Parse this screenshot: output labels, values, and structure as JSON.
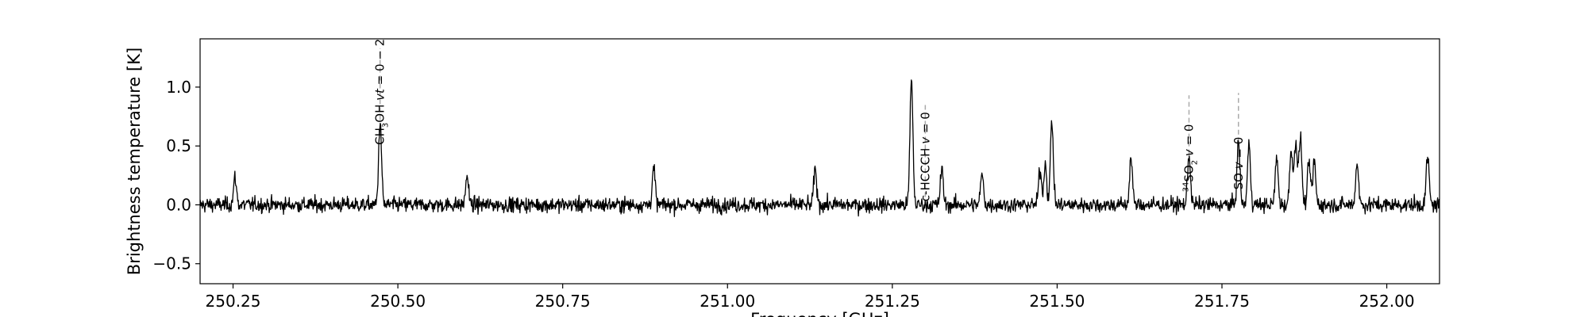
{
  "chart_data": {
    "type": "line",
    "title": "",
    "xlabel": "Frequency [GHz]",
    "ylabel": "Brightness temperature [K]",
    "xlim": [
      250.2,
      252.08
    ],
    "ylim": [
      -0.67,
      1.41
    ],
    "xticks": [
      250.25,
      250.5,
      250.75,
      251.0,
      251.25,
      251.5,
      251.75,
      252.0
    ],
    "xtick_labels": [
      "250.25",
      "250.50",
      "250.75",
      "251.00",
      "251.25",
      "251.50",
      "251.75",
      "252.00"
    ],
    "yticks": [
      -0.5,
      0.0,
      0.5,
      1.0
    ],
    "ytick_labels": [
      "−0.5",
      "0.0",
      "0.5",
      "1.0"
    ],
    "grid": false,
    "legend": "none",
    "colors": {
      "spectrum": "#000000",
      "marker": "#aaaaaa",
      "axes": "#000000"
    },
    "series": [
      {
        "peaks": [
          {
            "x": 250.253,
            "y": 0.23
          },
          {
            "x": 250.473,
            "y": 0.7
          },
          {
            "x": 250.605,
            "y": 0.25
          },
          {
            "x": 250.888,
            "y": 0.31
          },
          {
            "x": 251.133,
            "y": 0.3
          },
          {
            "x": 251.279,
            "y": 1.07
          },
          {
            "x": 251.325,
            "y": 0.3
          },
          {
            "x": 251.386,
            "y": 0.26
          },
          {
            "x": 251.474,
            "y": 0.3
          },
          {
            "x": 251.482,
            "y": 0.35
          },
          {
            "x": 251.492,
            "y": 0.71
          },
          {
            "x": 251.612,
            "y": 0.4
          },
          {
            "x": 251.7,
            "y": 0.43
          },
          {
            "x": 251.775,
            "y": 0.53
          },
          {
            "x": 251.791,
            "y": 0.51
          },
          {
            "x": 251.833,
            "y": 0.4
          },
          {
            "x": 251.855,
            "y": 0.48
          },
          {
            "x": 251.862,
            "y": 0.55
          },
          {
            "x": 251.869,
            "y": 0.58
          },
          {
            "x": 251.882,
            "y": 0.36
          },
          {
            "x": 251.89,
            "y": 0.37
          },
          {
            "x": 251.955,
            "y": 0.36
          },
          {
            "x": 252.062,
            "y": 0.41
          }
        ],
        "noise_rms": 0.045
      }
    ],
    "line_markers": [
      {
        "label_main": "CH",
        "label_sub": "3",
        "label_rest": "OH ",
        "label_var": "vt",
        "label_tail": " = 0 − 2",
        "x": 250.473,
        "y_from": 0.72,
        "y_to": 1.33
      },
      {
        "label_main": "c-HCCCH ",
        "label_var": "v",
        "label_tail": " = 0",
        "x": 251.3,
        "y_from": 0.0,
        "y_to": 0.85
      },
      {
        "label_sup": "34",
        "label_main": "SO",
        "label_sub": "2",
        "label_rest": " ",
        "label_var": "v",
        "label_tail": " = 0",
        "x": 251.7,
        "y_from": 0.43,
        "y_to": 0.93
      },
      {
        "label_main": "SO ",
        "label_var": "v",
        "label_tail": " = 0",
        "x": 251.775,
        "y_from": 0.53,
        "y_to": 0.95
      }
    ]
  }
}
